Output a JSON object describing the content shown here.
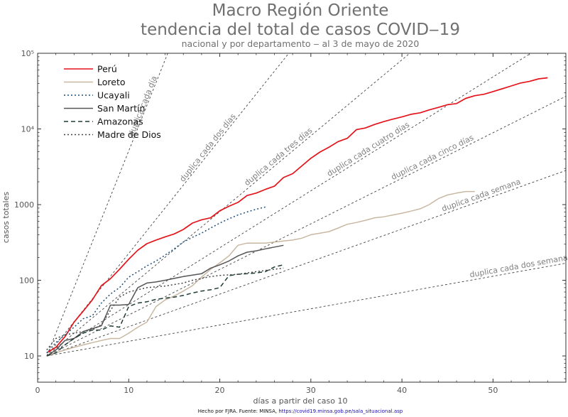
{
  "chart_data": {
    "type": "line",
    "title": "Macro Región Oriente",
    "title_line2": "tendencia del total de casos COVID‒19",
    "subtitle": "nacional y por departamento ‒ al 3 de mayo de 2020",
    "xlabel": "días a partir del caso 10",
    "ylabel": "casos totales",
    "xlim": [
      0,
      58
    ],
    "ylim": [
      4.5,
      100000
    ],
    "yscale": "log",
    "xticks": [
      0,
      10,
      20,
      30,
      40,
      50
    ],
    "yticks": [
      10,
      100,
      1000,
      10000,
      100000
    ],
    "ytick_labels": [
      "10",
      "100",
      "1000",
      "10⁴",
      "10⁵"
    ],
    "grid": false,
    "legend": "top-left",
    "reference_lines": [
      {
        "label": "duplica cada día",
        "doubling_days": 1
      },
      {
        "label": "duplica cada dos días",
        "doubling_days": 2
      },
      {
        "label": "duplica cada tres días",
        "doubling_days": 3
      },
      {
        "label": "duplica cada cuatro días",
        "doubling_days": 4
      },
      {
        "label": "duplica cada cinco días",
        "doubling_days": 5
      },
      {
        "label": "duplica cada semana",
        "doubling_days": 7
      },
      {
        "label": "duplica cada dos semanas",
        "doubling_days": 14
      }
    ],
    "series": [
      {
        "name": "Perú",
        "color": "#e4141b",
        "dash": "solid",
        "x": [
          1,
          2,
          3,
          4,
          5,
          6,
          7,
          8,
          9,
          10,
          11,
          12,
          13,
          14,
          15,
          16,
          17,
          18,
          19,
          20,
          21,
          22,
          23,
          24,
          25,
          26,
          27,
          28,
          29,
          30,
          31,
          32,
          33,
          34,
          35,
          36,
          37,
          38,
          39,
          40,
          41,
          42,
          43,
          44,
          45,
          46,
          47,
          48,
          49,
          50,
          51,
          52,
          53,
          54,
          55,
          56
        ],
        "y": [
          11,
          13,
          18,
          28,
          39,
          55,
          85,
          105,
          140,
          190,
          250,
          305,
          340,
          375,
          410,
          470,
          570,
          630,
          670,
          830,
          950,
          1070,
          1320,
          1420,
          1590,
          1750,
          2280,
          2560,
          3240,
          4100,
          4950,
          5750,
          6810,
          7520,
          9780,
          10300,
          11475,
          12490,
          13490,
          14420,
          15630,
          16330,
          17840,
          19250,
          20910,
          21650,
          25330,
          27500,
          28700,
          31200,
          33900,
          36980,
          40400,
          42500,
          45900,
          47400
        ]
      },
      {
        "name": "Loreto",
        "color": "#c8b8a2",
        "dash": "solid",
        "x": [
          1,
          2,
          3,
          4,
          5,
          6,
          7,
          8,
          9,
          10,
          11,
          12,
          13,
          14,
          15,
          16,
          17,
          18,
          19,
          20,
          21,
          22,
          23,
          24,
          25,
          26,
          27,
          28,
          29,
          30,
          31,
          32,
          33,
          34,
          35,
          36,
          37,
          38,
          39,
          40,
          41,
          42,
          43,
          44,
          45,
          46,
          47,
          48
        ],
        "y": [
          10,
          11,
          12,
          13,
          14,
          15,
          16,
          17,
          17,
          20,
          24,
          28,
          45,
          55,
          62,
          72,
          85,
          110,
          140,
          170,
          210,
          290,
          310,
          310,
          310,
          320,
          330,
          340,
          360,
          400,
          420,
          440,
          490,
          550,
          580,
          620,
          670,
          690,
          730,
          770,
          820,
          880,
          1000,
          1200,
          1340,
          1420,
          1490,
          1490
        ]
      },
      {
        "name": "Ucayali",
        "color": "#1f4e79",
        "dash": "dot",
        "x": [
          1,
          2,
          3,
          4,
          5,
          6,
          7,
          8,
          9,
          10,
          11,
          12,
          13,
          14,
          15,
          16,
          17,
          18,
          19,
          20,
          21,
          22,
          23,
          24,
          25
        ],
        "y": [
          11,
          15,
          19,
          24,
          31,
          34,
          50,
          66,
          80,
          110,
          130,
          155,
          180,
          215,
          260,
          320,
          370,
          420,
          490,
          570,
          650,
          730,
          800,
          870,
          930
        ]
      },
      {
        "name": "San Martín",
        "color": "#555555",
        "dash": "solid",
        "x": [
          1,
          2,
          3,
          4,
          5,
          6,
          7,
          8,
          9,
          10,
          11,
          12,
          13,
          14,
          15,
          16,
          17,
          18,
          19,
          20,
          21,
          22,
          23,
          24,
          25,
          26,
          27
        ],
        "y": [
          10,
          12,
          16,
          17,
          21,
          23,
          25,
          47,
          47,
          48,
          80,
          92,
          95,
          100,
          106,
          112,
          117,
          122,
          145,
          160,
          180,
          210,
          235,
          245,
          260,
          275,
          290
        ]
      },
      {
        "name": "Amazonas",
        "color": "#1f3d34",
        "dash": "dash",
        "x": [
          1,
          2,
          3,
          4,
          5,
          6,
          7,
          8,
          9,
          10,
          11,
          12,
          13,
          14,
          15,
          16,
          17,
          18,
          19,
          20,
          21,
          22,
          23,
          24,
          25,
          26,
          27
        ],
        "y": [
          10,
          11,
          14,
          17,
          20,
          22,
          22,
          25,
          24,
          45,
          50,
          52,
          56,
          58,
          60,
          63,
          68,
          72,
          75,
          80,
          115,
          120,
          122,
          125,
          130,
          150,
          160
        ]
      },
      {
        "name": "Madre de Dios",
        "color": "#444444",
        "dash": "dot",
        "x": [
          1,
          2,
          3,
          4,
          5,
          6,
          7,
          8,
          9,
          10,
          11,
          12,
          13,
          14,
          15,
          16,
          17,
          18,
          19,
          20,
          21,
          22,
          23,
          24,
          25,
          26,
          27
        ],
        "y": [
          12,
          17,
          19,
          20,
          21,
          22,
          26,
          40,
          60,
          70,
          75,
          80,
          82,
          84,
          88,
          92,
          100,
          106,
          112,
          116,
          118,
          120,
          125,
          130,
          135,
          140,
          145
        ]
      }
    ]
  },
  "footer": {
    "text": "Hecho por FJRA. Fuente: MINSA, ",
    "link": "https://covid19.minsa.gob.pe/sala_situacional.asp"
  }
}
